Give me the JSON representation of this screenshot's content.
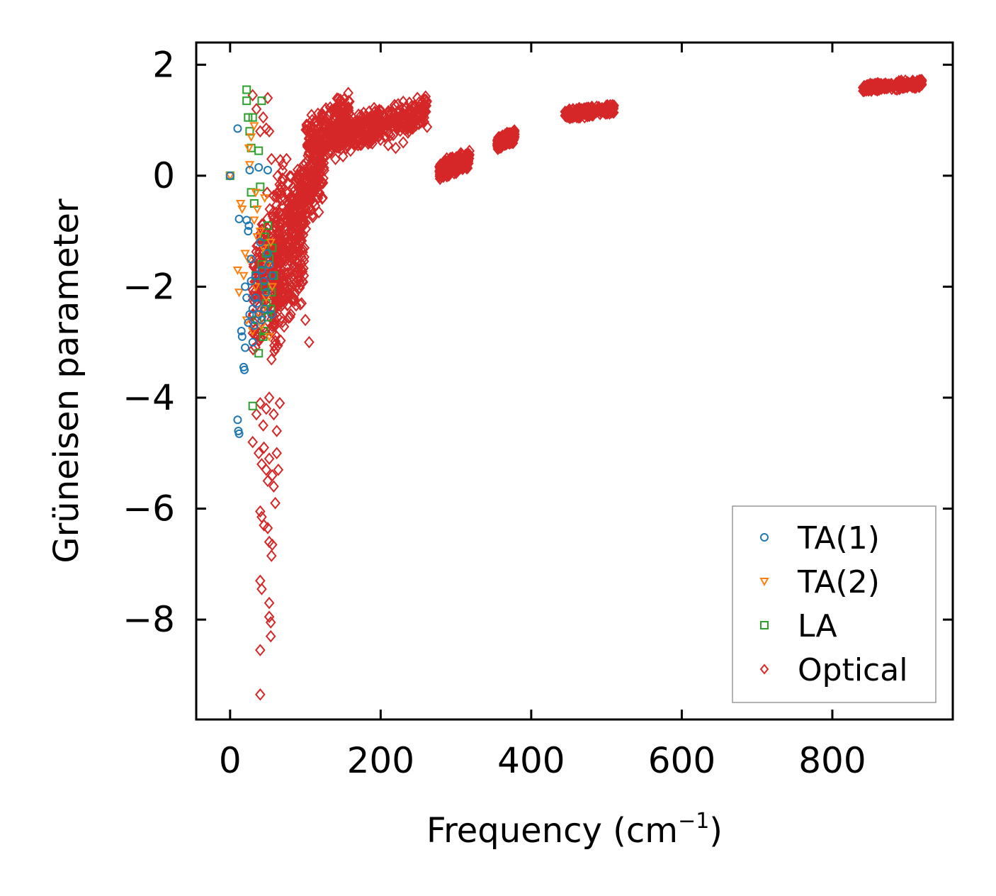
{
  "chart_data": {
    "type": "scatter",
    "title": "",
    "xlabel": "Frequency (cm",
    "xlabel_superscript": "−1",
    "xlabel_suffix": ")",
    "ylabel": "Grüneisen parameter",
    "xlim": [
      -45,
      960
    ],
    "ylim": [
      -9.8,
      2.4
    ],
    "xticks": [
      0,
      200,
      400,
      600,
      800
    ],
    "xtick_labels": [
      "0",
      "200",
      "400",
      "600",
      "800"
    ],
    "yticks": [
      2,
      0,
      -2,
      -4,
      -6,
      -8
    ],
    "ytick_labels": [
      "2",
      "0",
      "−2",
      "−4",
      "−6",
      "−8"
    ],
    "grid": false,
    "legend_position": "lower-right",
    "series": [
      {
        "name": "TA(1)",
        "marker": "circle",
        "color": "#1f77b4",
        "points": [
          [
            0,
            0
          ],
          [
            10,
            0.85
          ],
          [
            12,
            -0.78
          ],
          [
            15,
            -2.8
          ],
          [
            16,
            -2.9
          ],
          [
            18,
            -3.45
          ],
          [
            19,
            -3.5
          ],
          [
            20,
            -2.0
          ],
          [
            20,
            -3.1
          ],
          [
            22,
            -2.2
          ],
          [
            24,
            -1.0
          ],
          [
            25,
            -0.9
          ],
          [
            26,
            0.1
          ],
          [
            28,
            -1.5
          ],
          [
            30,
            -2.4
          ],
          [
            30,
            -3.0
          ],
          [
            10,
            -4.4
          ],
          [
            11,
            -4.6
          ],
          [
            12,
            -4.65
          ],
          [
            34,
            -1.8
          ],
          [
            36,
            -2.3
          ],
          [
            38,
            0.15
          ],
          [
            40,
            -1.2
          ],
          [
            42,
            -2.6
          ],
          [
            45,
            -1.9
          ],
          [
            48,
            -2.1
          ],
          [
            50,
            0.1
          ],
          [
            52,
            -1.6
          ],
          [
            55,
            -2.5
          ],
          [
            56,
            -1.8
          ],
          [
            22,
            -0.8
          ],
          [
            24,
            -2.65
          ],
          [
            26,
            -2.5
          ],
          [
            28,
            -1.9
          ],
          [
            32,
            -2.7
          ],
          [
            34,
            -2.2
          ],
          [
            38,
            -2.5
          ],
          [
            42,
            -1.7
          ],
          [
            46,
            -2.4
          ],
          [
            50,
            -1.4
          ]
        ]
      },
      {
        "name": "TA(2)",
        "marker": "triangle-down",
        "color": "#ff7f0e",
        "points": [
          [
            0,
            0
          ],
          [
            10,
            -1.7
          ],
          [
            12,
            -2.1
          ],
          [
            14,
            -0.5
          ],
          [
            16,
            -0.6
          ],
          [
            18,
            -1.8
          ],
          [
            20,
            -1.4
          ],
          [
            22,
            -2.6
          ],
          [
            24,
            -1.5
          ],
          [
            25,
            0.5
          ],
          [
            26,
            0.2
          ],
          [
            28,
            0.7
          ],
          [
            30,
            -2.8
          ],
          [
            32,
            -0.8
          ],
          [
            34,
            -2.0
          ],
          [
            36,
            -1.1
          ],
          [
            38,
            -2.5
          ],
          [
            40,
            -1.0
          ],
          [
            42,
            -2.7
          ],
          [
            44,
            -1.3
          ],
          [
            46,
            -0.4
          ],
          [
            48,
            -2.2
          ],
          [
            50,
            -1.6
          ],
          [
            52,
            -2.9
          ],
          [
            54,
            -1.2
          ],
          [
            56,
            -2.0
          ],
          [
            32,
            0.9
          ],
          [
            34,
            -0.3
          ],
          [
            36,
            -0.6
          ],
          [
            44,
            -2.4
          ]
        ]
      },
      {
        "name": "LA",
        "marker": "square",
        "color": "#2ca02c",
        "points": [
          [
            0,
            0
          ],
          [
            22,
            1.55
          ],
          [
            22,
            1.35
          ],
          [
            24,
            1.05
          ],
          [
            26,
            0.8
          ],
          [
            28,
            0.5
          ],
          [
            28,
            -0.3
          ],
          [
            30,
            1.05
          ],
          [
            30,
            -4.15
          ],
          [
            32,
            -0.5
          ],
          [
            34,
            -1.8
          ],
          [
            36,
            -2.6
          ],
          [
            38,
            -3.2
          ],
          [
            38,
            0.45
          ],
          [
            40,
            -0.2
          ],
          [
            42,
            1.35
          ],
          [
            42,
            -1.6
          ],
          [
            44,
            -2.9
          ],
          [
            46,
            -1.1
          ],
          [
            48,
            -2.3
          ],
          [
            50,
            -0.9
          ],
          [
            52,
            -1.5
          ],
          [
            54,
            -2.4
          ],
          [
            55,
            -2.1
          ],
          [
            56,
            -1.3
          ],
          [
            58,
            -1.8
          ],
          [
            45,
            -2.8
          ],
          [
            46,
            -2.0
          ],
          [
            48,
            -1.4
          ],
          [
            50,
            -2.55
          ]
        ]
      },
      {
        "name": "Optical",
        "marker": "diamond",
        "color": "#d62728",
        "clusters": [
          {
            "x": [
              30,
              70
            ],
            "y": [
              -3.6,
              0.5
            ]
          },
          {
            "x": [
              55,
              100
            ],
            "y": [
              -3.4,
              0.0
            ]
          },
          {
            "x": [
              75,
              125
            ],
            "y": [
              -1.4,
              0.8
            ]
          },
          {
            "x": [
              100,
              160
            ],
            "y": [
              0.0,
              1.6
            ]
          },
          {
            "x": [
              130,
              200
            ],
            "y": [
              0.3,
              1.3
            ]
          },
          {
            "x": [
              180,
              262
            ],
            "y": [
              0.5,
              1.5
            ]
          },
          {
            "x": [
              278,
              318
            ],
            "y": [
              -0.1,
              0.5
            ]
          },
          {
            "x": [
              355,
              378
            ],
            "y": [
              0.45,
              0.85
            ]
          },
          {
            "x": [
              445,
              510
            ],
            "y": [
              1.0,
              1.3
            ]
          },
          {
            "x": [
              840,
              920
            ],
            "y": [
              1.5,
              1.75
            ]
          }
        ],
        "points": [
          [
            40,
            -9.35
          ],
          [
            40,
            -8.55
          ],
          [
            40,
            -7.3
          ],
          [
            42,
            -7.45
          ],
          [
            52,
            -7.7
          ],
          [
            52,
            -7.95
          ],
          [
            54,
            -8.05
          ],
          [
            54,
            -8.3
          ],
          [
            40,
            -6.05
          ],
          [
            42,
            -6.15
          ],
          [
            45,
            -6.3
          ],
          [
            50,
            -6.35
          ],
          [
            52,
            -6.6
          ],
          [
            55,
            -6.85
          ],
          [
            56,
            -6.65
          ],
          [
            30,
            -4.8
          ],
          [
            38,
            -5.0
          ],
          [
            42,
            -5.2
          ],
          [
            45,
            -4.9
          ],
          [
            48,
            -5.3
          ],
          [
            50,
            -5.5
          ],
          [
            52,
            -5.1
          ],
          [
            56,
            -5.4
          ],
          [
            58,
            -5.6
          ],
          [
            60,
            -5.9
          ],
          [
            62,
            -5.0
          ],
          [
            64,
            -5.3
          ],
          [
            35,
            -4.3
          ],
          [
            40,
            -4.1
          ],
          [
            44,
            -4.5
          ],
          [
            48,
            -4.2
          ],
          [
            52,
            -4.0
          ],
          [
            58,
            -4.3
          ],
          [
            62,
            -4.6
          ],
          [
            66,
            -4.1
          ],
          [
            50,
            1.4
          ],
          [
            52,
            0.8
          ],
          [
            55,
            0.3
          ],
          [
            70,
            0.2
          ],
          [
            75,
            0.3
          ],
          [
            100,
            -2.6
          ],
          [
            105,
            -3.0
          ],
          [
            98,
            -1.8
          ],
          [
            95,
            -2.3
          ],
          [
            30,
            1.45
          ],
          [
            35,
            1.2
          ],
          [
            40,
            0.8
          ],
          [
            44,
            1.05
          ],
          [
            48,
            0.85
          ],
          [
            140,
            0.3
          ],
          [
            150,
            0.35
          ],
          [
            160,
            0.45
          ],
          [
            170,
            0.55
          ],
          [
            190,
            0.7
          ],
          [
            210,
            0.55
          ],
          [
            220,
            0.5
          ],
          [
            230,
            0.6
          ]
        ]
      }
    ]
  }
}
